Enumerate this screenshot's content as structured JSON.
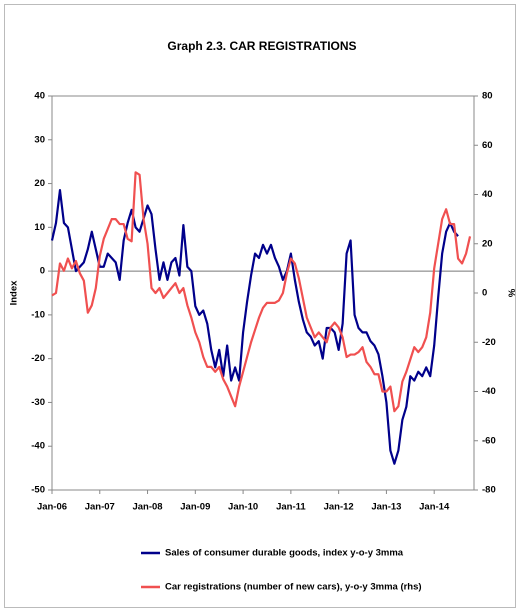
{
  "chart_data": {
    "type": "line",
    "title": "Graph 2.3. CAR REGISTRATIONS",
    "y_label": "Index",
    "y2_label": "%",
    "categories": [
      "Jan-06",
      null,
      null,
      null,
      null,
      null,
      null,
      null,
      null,
      null,
      null,
      null,
      "Jan-07",
      null,
      null,
      null,
      null,
      null,
      null,
      null,
      null,
      null,
      null,
      null,
      "Jan-08",
      null,
      null,
      null,
      null,
      null,
      null,
      null,
      null,
      null,
      null,
      null,
      "Jan-09",
      null,
      null,
      null,
      null,
      null,
      null,
      null,
      null,
      null,
      null,
      null,
      "Jan-10",
      null,
      null,
      null,
      null,
      null,
      null,
      null,
      null,
      null,
      null,
      null,
      "Jan-11",
      null,
      null,
      null,
      null,
      null,
      null,
      null,
      null,
      null,
      null,
      null,
      "Jan-12",
      null,
      null,
      null,
      null,
      null,
      null,
      null,
      null,
      null,
      null,
      null,
      "Jan-13",
      null,
      null,
      null,
      null,
      null,
      null,
      null,
      null,
      null,
      null,
      null,
      "Jan-14",
      null,
      null,
      null,
      null,
      null,
      null,
      null,
      null,
      null
    ],
    "series": [
      {
        "name": "Sales of consumer durable goods, index y-o-y 3mma",
        "color": "#00008b",
        "axis": "y",
        "values": [
          7,
          11,
          18.5,
          11,
          10,
          5,
          0,
          1,
          2,
          5,
          9,
          5,
          1,
          1,
          4,
          3,
          2,
          -2,
          7,
          11,
          14,
          10,
          9,
          12,
          15,
          13,
          5,
          -2,
          2,
          -2,
          2,
          3,
          -1,
          10.5,
          1,
          0,
          -8,
          -10,
          -9,
          -12,
          -18,
          -22,
          -18,
          -24,
          -17,
          -25,
          -22,
          -25,
          -14,
          -7,
          -1,
          4,
          3,
          6,
          4,
          6,
          3,
          1,
          -2,
          0,
          4,
          -2,
          -7,
          -11,
          -14,
          -15,
          -17,
          -16,
          -20,
          -13,
          -13,
          -14,
          -18,
          -12,
          4,
          7,
          -10,
          -13,
          -14,
          -14,
          -16,
          -17,
          -19,
          -24,
          -30,
          -41,
          -44,
          -41,
          -34,
          -31,
          -24,
          -25,
          -23,
          -24,
          -22,
          -24,
          -17,
          -6,
          4,
          9,
          11,
          9,
          8,
          null,
          null,
          null
        ]
      },
      {
        "name": "Car registrations (number of new cars), y-o-y 3mma (rhs)",
        "color": "#f05050",
        "axis": "y2",
        "values": [
          -1,
          0,
          12,
          9,
          14,
          10,
          13,
          8,
          5,
          -8,
          -5,
          2,
          15,
          22,
          26,
          30,
          30,
          28,
          28,
          22,
          21,
          49,
          48,
          30,
          20,
          2,
          0,
          2,
          -2,
          0,
          2,
          4,
          0,
          2,
          -5,
          -10,
          -16,
          -20,
          -26,
          -30,
          -30,
          -32,
          -30,
          -35,
          -38,
          -42,
          -46,
          -38,
          -32,
          -26,
          -20,
          -15,
          -10,
          -6,
          -4,
          -4,
          -4,
          -3,
          0,
          8,
          14,
          12,
          6,
          -2,
          -10,
          -14,
          -18,
          -16,
          -18,
          -20,
          -14,
          -12,
          -14,
          -18,
          -26,
          -25,
          -25,
          -24,
          -22,
          -28,
          -30,
          -33,
          -33,
          -40,
          -40,
          -38,
          -48,
          -46,
          -36,
          -32,
          -27,
          -22,
          -24,
          -22,
          -18,
          -8,
          10,
          20,
          30,
          34,
          28,
          28,
          14,
          12,
          16,
          23
        ]
      }
    ],
    "ylim": [
      -50,
      40
    ],
    "yticks": [
      -50,
      -40,
      -30,
      -20,
      -10,
      0,
      10,
      20,
      30,
      40
    ],
    "y2lim": [
      -80,
      80
    ],
    "y2ticks": [
      -80,
      -60,
      -40,
      -20,
      0,
      20,
      40,
      60,
      80
    ],
    "zero_line": true,
    "legend": "bottom"
  }
}
